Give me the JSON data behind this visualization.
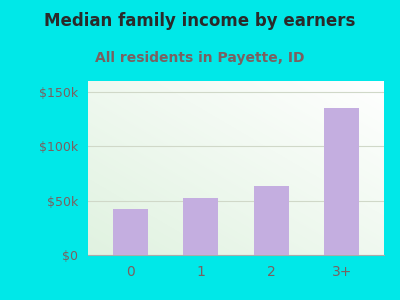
{
  "categories": [
    "0",
    "1",
    "2",
    "3+"
  ],
  "values": [
    42000,
    52000,
    63000,
    135000
  ],
  "bar_color": "#c4aee0",
  "title": "Median family income by earners",
  "subtitle": "All residents in Payette, ID",
  "ylim": [
    0,
    160000
  ],
  "yticks": [
    0,
    50000,
    100000,
    150000
  ],
  "ytick_labels": [
    "$0",
    "$50k",
    "$100k",
    "$150k"
  ],
  "background_color": "#00e8e8",
  "title_color": "#2a2a2a",
  "subtitle_color": "#7a6060",
  "tick_color": "#7a6060",
  "axis_tick_color": "#7a6060",
  "title_fontsize": 12,
  "subtitle_fontsize": 10,
  "grid_color": "#d0d8c8",
  "plot_bg_colors": [
    "#d8ecd8",
    "#f8fff8",
    "#ffffff",
    "#ffffff"
  ]
}
